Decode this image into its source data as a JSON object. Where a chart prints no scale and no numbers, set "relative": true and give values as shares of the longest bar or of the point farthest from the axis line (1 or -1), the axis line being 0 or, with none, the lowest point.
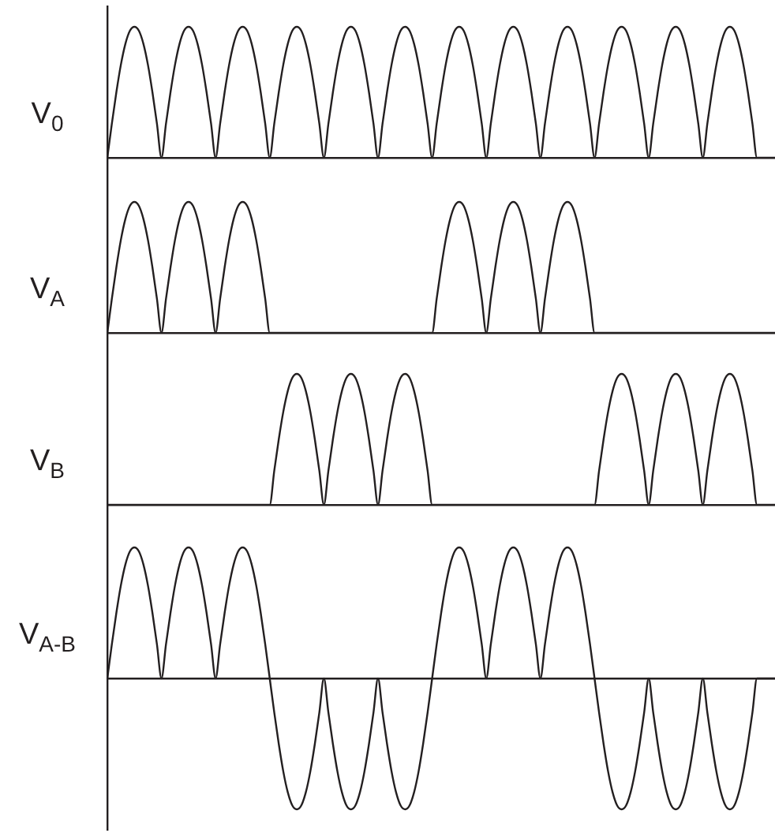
{
  "chart_data": [
    {
      "type": "line",
      "relative": true,
      "ylabel": "V$_{0}$",
      "marker": "none",
      "line_style": "solid",
      "categories": [
        null,
        null,
        null,
        null,
        null,
        null,
        null,
        null,
        null,
        null,
        null,
        null,
        null,
        null,
        null,
        null,
        null,
        null,
        null,
        null,
        null,
        null,
        null,
        null,
        null,
        null,
        null,
        null,
        null,
        null,
        null,
        null,
        null,
        null,
        null,
        null,
        null,
        null,
        null,
        null,
        null,
        null,
        null,
        null,
        null,
        null,
        null,
        null,
        null,
        null,
        null,
        null,
        null,
        null,
        null,
        null,
        null,
        null,
        null,
        null,
        null,
        null,
        null,
        null,
        null,
        null,
        null,
        null,
        null,
        null,
        null,
        null,
        null,
        null,
        null,
        null,
        null,
        null,
        null,
        null,
        null,
        null,
        null,
        null,
        null,
        null,
        null,
        null,
        null,
        null,
        null,
        null,
        null,
        null,
        null,
        null,
        null,
        null,
        null,
        null,
        null,
        null,
        null,
        null,
        null,
        null,
        null,
        null,
        null,
        null,
        null,
        null,
        null,
        null,
        null,
        null,
        null,
        null,
        null,
        null,
        null,
        null,
        null,
        null,
        null,
        null,
        null,
        null,
        null,
        null,
        null,
        null,
        null,
        null,
        null,
        null,
        null,
        null,
        null,
        null,
        null,
        null,
        null,
        null,
        null,
        null,
        null,
        null,
        null
      ],
      "series": [
        {
          "color": "#231f20",
          "values": [
            0,
            0.26,
            0.5,
            0.71,
            0.87,
            0.97,
            1,
            0.97,
            0.87,
            0.71,
            0.5,
            0.26,
            0,
            0.26,
            0.5,
            0.71,
            0.87,
            0.97,
            1,
            0.97,
            0.87,
            0.71,
            0.5,
            0.26,
            0,
            0.26,
            0.5,
            0.71,
            0.87,
            0.97,
            1,
            0.97,
            0.87,
            0.71,
            0.5,
            0.26,
            0,
            0.26,
            0.5,
            0.71,
            0.87,
            0.97,
            1,
            0.97,
            0.87,
            0.71,
            0.5,
            0.26,
            0,
            0.26,
            0.5,
            0.71,
            0.87,
            0.97,
            1,
            0.97,
            0.87,
            0.71,
            0.5,
            0.26,
            0,
            0.26,
            0.5,
            0.71,
            0.87,
            0.97,
            1,
            0.97,
            0.87,
            0.71,
            0.5,
            0.26,
            0,
            0.26,
            0.5,
            0.71,
            0.87,
            0.97,
            1,
            0.97,
            0.87,
            0.71,
            0.5,
            0.26,
            0,
            0.26,
            0.5,
            0.71,
            0.87,
            0.97,
            1,
            0.97,
            0.87,
            0.71,
            0.5,
            0.26,
            0,
            0.26,
            0.5,
            0.71,
            0.87,
            0.97,
            1,
            0.97,
            0.87,
            0.71,
            0.5,
            0.26,
            0,
            0.26,
            0.5,
            0.71,
            0.87,
            0.97,
            1,
            0.97,
            0.87,
            0.71,
            0.5,
            0.26,
            0,
            0.26,
            0.5,
            0.71,
            0.87,
            0.97,
            1,
            0.97,
            0.87,
            0.71,
            0.5,
            0.26,
            0,
            0.26,
            0.5,
            0.71,
            0.87,
            0.97,
            1,
            0.97,
            0.87,
            0.71,
            0.5,
            0.26,
            0,
            0,
            0,
            0,
            0
          ]
        }
      ]
    },
    {
      "type": "line",
      "relative": true,
      "ylabel": "V$_{A}$",
      "marker": "none",
      "line_style": "solid",
      "categories": [
        null,
        null,
        null,
        null,
        null,
        null,
        null,
        null,
        null,
        null,
        null,
        null,
        null,
        null,
        null,
        null,
        null,
        null,
        null,
        null,
        null,
        null,
        null,
        null,
        null,
        null,
        null,
        null,
        null,
        null,
        null,
        null,
        null,
        null,
        null,
        null,
        null,
        null,
        null,
        null,
        null,
        null,
        null,
        null,
        null,
        null,
        null,
        null,
        null,
        null,
        null,
        null,
        null,
        null,
        null,
        null,
        null,
        null,
        null,
        null,
        null,
        null,
        null,
        null,
        null,
        null,
        null,
        null,
        null,
        null,
        null,
        null,
        null,
        null,
        null,
        null,
        null,
        null,
        null,
        null,
        null,
        null,
        null,
        null,
        null,
        null,
        null,
        null,
        null,
        null,
        null,
        null,
        null,
        null,
        null,
        null,
        null,
        null,
        null,
        null,
        null,
        null,
        null,
        null,
        null,
        null,
        null,
        null,
        null,
        null,
        null,
        null,
        null,
        null,
        null,
        null,
        null,
        null,
        null,
        null,
        null,
        null,
        null,
        null,
        null,
        null,
        null,
        null,
        null,
        null,
        null,
        null,
        null,
        null,
        null,
        null,
        null,
        null,
        null,
        null,
        null,
        null,
        null,
        null,
        null,
        null,
        null,
        null,
        null
      ],
      "series": [
        {
          "color": "#231f20",
          "values": [
            0,
            0.26,
            0.5,
            0.71,
            0.87,
            0.97,
            1,
            0.97,
            0.87,
            0.71,
            0.5,
            0.26,
            0,
            0.26,
            0.5,
            0.71,
            0.87,
            0.97,
            1,
            0.97,
            0.87,
            0.71,
            0.5,
            0.26,
            0,
            0.26,
            0.5,
            0.71,
            0.87,
            0.97,
            1,
            0.97,
            0.87,
            0.71,
            0.5,
            0.26,
            0,
            0,
            0,
            0,
            0,
            0,
            0,
            0,
            0,
            0,
            0,
            0,
            0,
            0,
            0,
            0,
            0,
            0,
            0,
            0,
            0,
            0,
            0,
            0,
            0,
            0,
            0,
            0,
            0,
            0,
            0,
            0,
            0,
            0,
            0,
            0,
            0,
            0.26,
            0.5,
            0.71,
            0.87,
            0.97,
            1,
            0.97,
            0.87,
            0.71,
            0.5,
            0.26,
            0,
            0.26,
            0.5,
            0.71,
            0.87,
            0.97,
            1,
            0.97,
            0.87,
            0.71,
            0.5,
            0.26,
            0,
            0.26,
            0.5,
            0.71,
            0.87,
            0.97,
            1,
            0.97,
            0.87,
            0.71,
            0.5,
            0.26,
            0,
            0,
            0,
            0,
            0,
            0,
            0,
            0,
            0,
            0,
            0,
            0,
            0,
            0,
            0,
            0,
            0,
            0,
            0,
            0,
            0,
            0,
            0,
            0,
            0,
            0,
            0,
            0,
            0,
            0,
            0,
            0,
            0,
            0,
            0,
            0,
            0,
            0,
            0,
            0,
            0
          ]
        }
      ]
    },
    {
      "type": "line",
      "relative": true,
      "ylabel": "V$_{B}$",
      "marker": "none",
      "line_style": "solid",
      "categories": [
        null,
        null,
        null,
        null,
        null,
        null,
        null,
        null,
        null,
        null,
        null,
        null,
        null,
        null,
        null,
        null,
        null,
        null,
        null,
        null,
        null,
        null,
        null,
        null,
        null,
        null,
        null,
        null,
        null,
        null,
        null,
        null,
        null,
        null,
        null,
        null,
        null,
        null,
        null,
        null,
        null,
        null,
        null,
        null,
        null,
        null,
        null,
        null,
        null,
        null,
        null,
        null,
        null,
        null,
        null,
        null,
        null,
        null,
        null,
        null,
        null,
        null,
        null,
        null,
        null,
        null,
        null,
        null,
        null,
        null,
        null,
        null,
        null,
        null,
        null,
        null,
        null,
        null,
        null,
        null,
        null,
        null,
        null,
        null,
        null,
        null,
        null,
        null,
        null,
        null,
        null,
        null,
        null,
        null,
        null,
        null,
        null,
        null,
        null,
        null,
        null,
        null,
        null,
        null,
        null,
        null,
        null,
        null,
        null,
        null,
        null,
        null,
        null,
        null,
        null,
        null,
        null,
        null,
        null,
        null,
        null,
        null,
        null,
        null,
        null,
        null,
        null,
        null,
        null,
        null,
        null,
        null,
        null,
        null,
        null,
        null,
        null,
        null,
        null,
        null,
        null,
        null,
        null,
        null,
        null,
        null,
        null,
        null,
        null
      ],
      "series": [
        {
          "color": "#231f20",
          "values": [
            0,
            0,
            0,
            0,
            0,
            0,
            0,
            0,
            0,
            0,
            0,
            0,
            0,
            0,
            0,
            0,
            0,
            0,
            0,
            0,
            0,
            0,
            0,
            0,
            0,
            0,
            0,
            0,
            0,
            0,
            0,
            0,
            0,
            0,
            0,
            0,
            0,
            0.26,
            0.5,
            0.71,
            0.87,
            0.97,
            1,
            0.97,
            0.87,
            0.71,
            0.5,
            0.26,
            0,
            0.26,
            0.5,
            0.71,
            0.87,
            0.97,
            1,
            0.97,
            0.87,
            0.71,
            0.5,
            0.26,
            0,
            0.26,
            0.5,
            0.71,
            0.87,
            0.97,
            1,
            0.97,
            0.87,
            0.71,
            0.5,
            0.26,
            0,
            0,
            0,
            0,
            0,
            0,
            0,
            0,
            0,
            0,
            0,
            0,
            0,
            0,
            0,
            0,
            0,
            0,
            0,
            0,
            0,
            0,
            0,
            0,
            0,
            0,
            0,
            0,
            0,
            0,
            0,
            0,
            0,
            0,
            0,
            0,
            0,
            0.26,
            0.5,
            0.71,
            0.87,
            0.97,
            1,
            0.97,
            0.87,
            0.71,
            0.5,
            0.26,
            0,
            0.26,
            0.5,
            0.71,
            0.87,
            0.97,
            1,
            0.97,
            0.87,
            0.71,
            0.5,
            0.26,
            0,
            0.26,
            0.5,
            0.71,
            0.87,
            0.97,
            1,
            0.97,
            0.87,
            0.71,
            0.5,
            0.26,
            0,
            0,
            0,
            0,
            0
          ]
        }
      ]
    },
    {
      "type": "line",
      "relative": true,
      "ylabel": "V$_{A-B}$",
      "marker": "none",
      "line_style": "solid",
      "categories": [
        null,
        null,
        null,
        null,
        null,
        null,
        null,
        null,
        null,
        null,
        null,
        null,
        null,
        null,
        null,
        null,
        null,
        null,
        null,
        null,
        null,
        null,
        null,
        null,
        null,
        null,
        null,
        null,
        null,
        null,
        null,
        null,
        null,
        null,
        null,
        null,
        null,
        null,
        null,
        null,
        null,
        null,
        null,
        null,
        null,
        null,
        null,
        null,
        null,
        null,
        null,
        null,
        null,
        null,
        null,
        null,
        null,
        null,
        null,
        null,
        null,
        null,
        null,
        null,
        null,
        null,
        null,
        null,
        null,
        null,
        null,
        null,
        null,
        null,
        null,
        null,
        null,
        null,
        null,
        null,
        null,
        null,
        null,
        null,
        null,
        null,
        null,
        null,
        null,
        null,
        null,
        null,
        null,
        null,
        null,
        null,
        null,
        null,
        null,
        null,
        null,
        null,
        null,
        null,
        null,
        null,
        null,
        null,
        null,
        null,
        null,
        null,
        null,
        null,
        null,
        null,
        null,
        null,
        null,
        null,
        null,
        null,
        null,
        null,
        null,
        null,
        null,
        null,
        null,
        null,
        null,
        null,
        null,
        null,
        null,
        null,
        null,
        null,
        null,
        null,
        null,
        null,
        null,
        null,
        null,
        null,
        null,
        null,
        null
      ],
      "series": [
        {
          "color": "#231f20",
          "values": [
            0,
            0.26,
            0.5,
            0.71,
            0.87,
            0.97,
            1,
            0.97,
            0.87,
            0.71,
            0.5,
            0.26,
            0,
            0.26,
            0.5,
            0.71,
            0.87,
            0.97,
            1,
            0.97,
            0.87,
            0.71,
            0.5,
            0.26,
            0,
            0.26,
            0.5,
            0.71,
            0.87,
            0.97,
            1,
            0.97,
            0.87,
            0.71,
            0.5,
            0.26,
            0,
            -0.26,
            -0.5,
            -0.71,
            -0.87,
            -0.97,
            -1,
            -0.97,
            -0.87,
            -0.71,
            -0.5,
            -0.26,
            0,
            -0.26,
            -0.5,
            -0.71,
            -0.87,
            -0.97,
            -1,
            -0.97,
            -0.87,
            -0.71,
            -0.5,
            -0.26,
            0,
            -0.26,
            -0.5,
            -0.71,
            -0.87,
            -0.97,
            -1,
            -0.97,
            -0.87,
            -0.71,
            -0.5,
            -0.26,
            0,
            0.26,
            0.5,
            0.71,
            0.87,
            0.97,
            1,
            0.97,
            0.87,
            0.71,
            0.5,
            0.26,
            0,
            0.26,
            0.5,
            0.71,
            0.87,
            0.97,
            1,
            0.97,
            0.87,
            0.71,
            0.5,
            0.26,
            0,
            0.26,
            0.5,
            0.71,
            0.87,
            0.97,
            1,
            0.97,
            0.87,
            0.71,
            0.5,
            0.26,
            0,
            -0.26,
            -0.5,
            -0.71,
            -0.87,
            -0.97,
            -1,
            -0.97,
            -0.87,
            -0.71,
            -0.5,
            -0.26,
            0,
            -0.26,
            -0.5,
            -0.71,
            -0.87,
            -0.97,
            -1,
            -0.97,
            -0.87,
            -0.71,
            -0.5,
            -0.26,
            0,
            -0.26,
            -0.5,
            -0.71,
            -0.87,
            -0.97,
            -1,
            -0.97,
            -0.87,
            -0.71,
            -0.5,
            -0.26,
            0,
            0,
            0,
            0,
            0
          ]
        }
      ]
    }
  ]
}
